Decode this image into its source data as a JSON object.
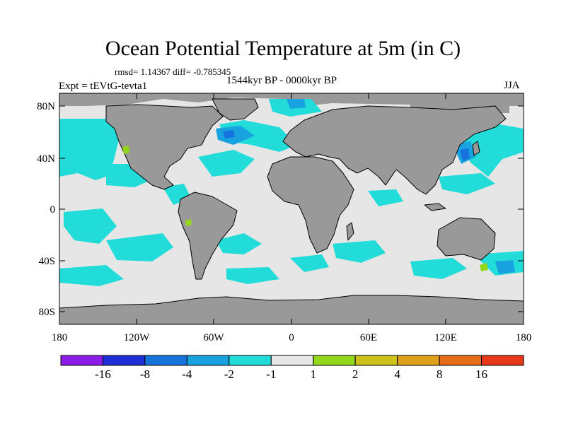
{
  "title": "Ocean Potential Temperature at 5m (in C)",
  "stats": {
    "rmsd_label": "rmsd=",
    "rmsd": "1.14367",
    "diff_label": "diff=",
    "diff": "-0.785345"
  },
  "experiment": "Expt = tEVtG-tevta1",
  "period": "1544kyr BP - 0000kyr BP",
  "season": "JJA",
  "axes": {
    "lat_labels": [
      "80N",
      "40N",
      "0",
      "40S",
      "80S"
    ],
    "lon_labels": [
      "180",
      "120W",
      "60W",
      "0",
      "60E",
      "120E",
      "180"
    ]
  },
  "colorbar": {
    "colors": [
      "#8b1ee6",
      "#1f2fd6",
      "#1673dc",
      "#18a2e0",
      "#22dcd9",
      "#e6e6e6",
      "#94d61a",
      "#ccc21a",
      "#dea01a",
      "#e66c1a",
      "#e6391a"
    ],
    "labels": [
      "-16",
      "-8",
      "-4",
      "-2",
      "-1",
      "1",
      "2",
      "4",
      "8",
      "16"
    ]
  },
  "colors": {
    "land": "#999999",
    "ocean": "#e6e6e6",
    "cold_light": "#22dcd9",
    "cold_mid": "#18a2e0",
    "cold_strong": "#1673dc",
    "warm_light": "#94d61a"
  }
}
